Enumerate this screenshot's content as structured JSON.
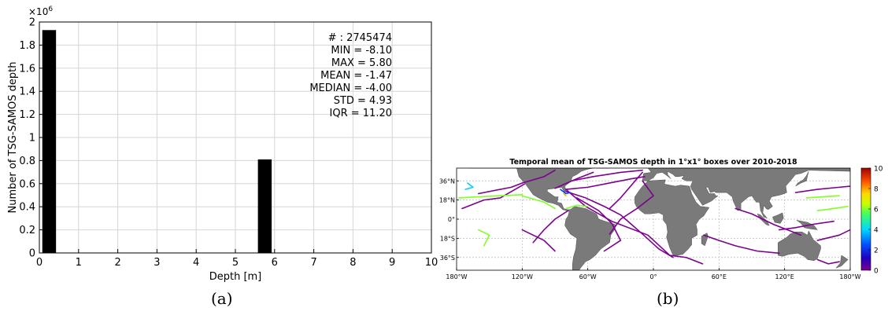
{
  "panels": {
    "a": {
      "caption": "(a)",
      "chart_data": {
        "type": "bar",
        "x": [
          0.25,
          5.75
        ],
        "values": [
          1930000,
          810000
        ],
        "bar_width": 0.35,
        "xlabel": "Depth [m]",
        "ylabel": "Number of TSG-SAMOS depth",
        "xlim": [
          0,
          10
        ],
        "ylim": [
          0,
          2000000
        ],
        "xticks": [
          "0",
          "1",
          "2",
          "3",
          "4",
          "5",
          "6",
          "7",
          "8",
          "9",
          "10"
        ],
        "yticks": [
          "0",
          "0.2",
          "0.4",
          "0.6",
          "0.8",
          "1",
          "1.2",
          "1.4",
          "1.6",
          "1.8",
          "2"
        ],
        "y_multiplier": "×10",
        "y_multiplier_exp": "6",
        "grid": true,
        "bar_color": "#000000",
        "stats": [
          "# : 2745474",
          "MIN = -8.10",
          "MAX =  5.80",
          "MEAN = -1.47",
          "MEDIAN = -4.00",
          "STD = 4.93",
          "IQR = 11.20"
        ]
      }
    },
    "b": {
      "caption": "(b)",
      "chart_data": {
        "type": "heatmap",
        "title": "Temporal mean of TSG-SAMOS depth in 1°x1° boxes over 2010-2018",
        "xticks": [
          "180°W",
          "120°W",
          "60°W",
          "0°",
          "60°E",
          "120°E",
          "180°W"
        ],
        "yticks": [
          "36°N",
          "18°N",
          "0°",
          "18°S",
          "36°S"
        ],
        "colorbar_ticks": [
          "10",
          "8",
          "6",
          "4",
          "2",
          "0"
        ],
        "colorbar_range": [
          0,
          10
        ],
        "land_color": "#7a7a7a",
        "dominant_value_color": "#7d0090",
        "secondary_value_color": "#80ff20"
      }
    }
  }
}
